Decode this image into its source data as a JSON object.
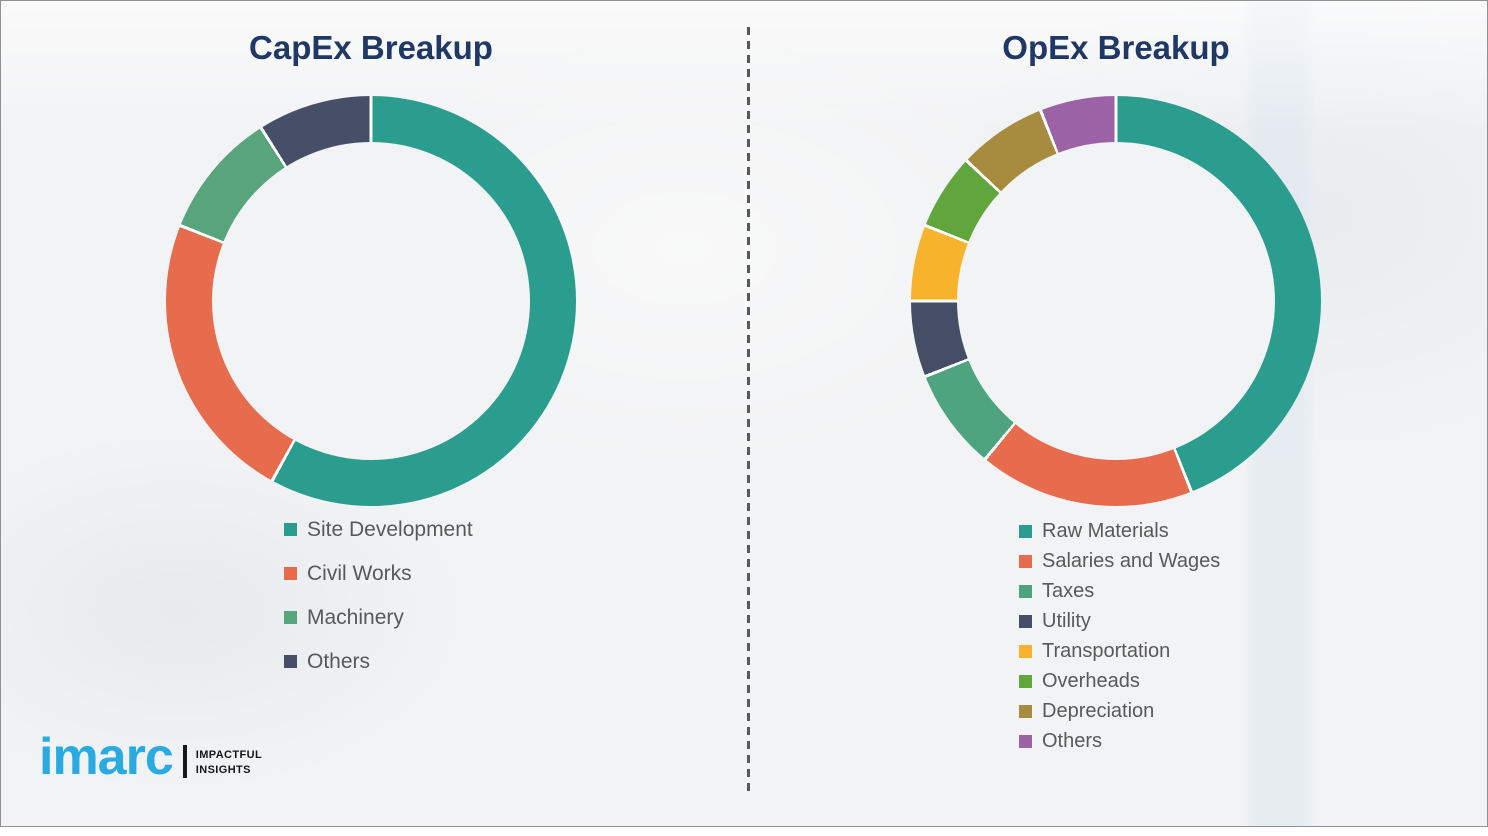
{
  "page": {
    "background_color": "#f2f3f4",
    "divider_color": "#595959",
    "title_color": "#1f3864",
    "legend_text_color": "#595959"
  },
  "logo": {
    "brand": "imarc",
    "brand_color": "#29abe2",
    "tagline_line1": "IMPACTFUL",
    "tagline_line2": "INSIGHTS"
  },
  "chart_data": [
    {
      "type": "pie",
      "donut": true,
      "title": "CapEx Breakup",
      "labels": [
        "Site Development",
        "Civil Works",
        "Machinery",
        "Others"
      ],
      "values": [
        58,
        23,
        10,
        9
      ],
      "colors": [
        "#2a9d8f",
        "#e76b4d",
        "#58a47d",
        "#474f68"
      ],
      "start_angle_deg": 0,
      "direction": "clockwise",
      "legend_position": "bottom-left",
      "grid": false
    },
    {
      "type": "pie",
      "donut": true,
      "title": "OpEx Breakup",
      "labels": [
        "Raw Materials",
        "Salaries and Wages",
        "Taxes",
        "Utility",
        "Transportation",
        "Overheads",
        "Depreciation",
        "Others"
      ],
      "values": [
        44,
        17,
        8,
        6,
        6,
        6,
        7,
        6
      ],
      "colors": [
        "#2a9d8f",
        "#e76b4d",
        "#4fa480",
        "#454e66",
        "#f6b32b",
        "#61a63c",
        "#a78b3f",
        "#9b62a6"
      ],
      "start_angle_deg": 0,
      "direction": "clockwise",
      "legend_position": "bottom-left",
      "grid": false
    }
  ]
}
